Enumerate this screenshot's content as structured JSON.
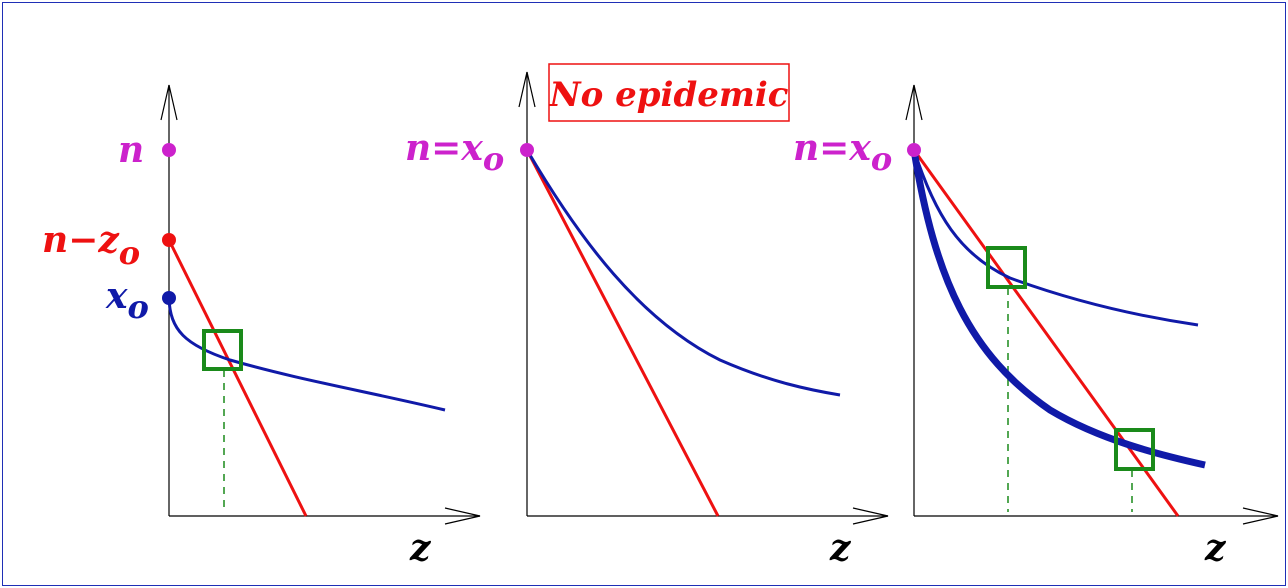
{
  "colors": {
    "frame": "#1f2fb6",
    "axis": "#000000",
    "magenta": "#cc22cc",
    "red": "#ee1111",
    "blue": "#101aa8",
    "green": "#1a8a1a"
  },
  "panels": [
    {
      "axis_label": "z",
      "points": [
        {
          "main": "n",
          "sub": "",
          "color": "magenta"
        },
        {
          "main": "n−z",
          "sub": "o",
          "color": "red"
        },
        {
          "main": "x",
          "sub": "o",
          "color": "blue"
        }
      ]
    },
    {
      "axis_label": "z",
      "box_label": "No epidemic",
      "points": [
        {
          "main": "n=x",
          "sub": "o",
          "color": "magenta"
        }
      ]
    },
    {
      "axis_label": "z",
      "points": [
        {
          "main": "n=x",
          "sub": "o",
          "color": "magenta"
        }
      ]
    }
  ]
}
